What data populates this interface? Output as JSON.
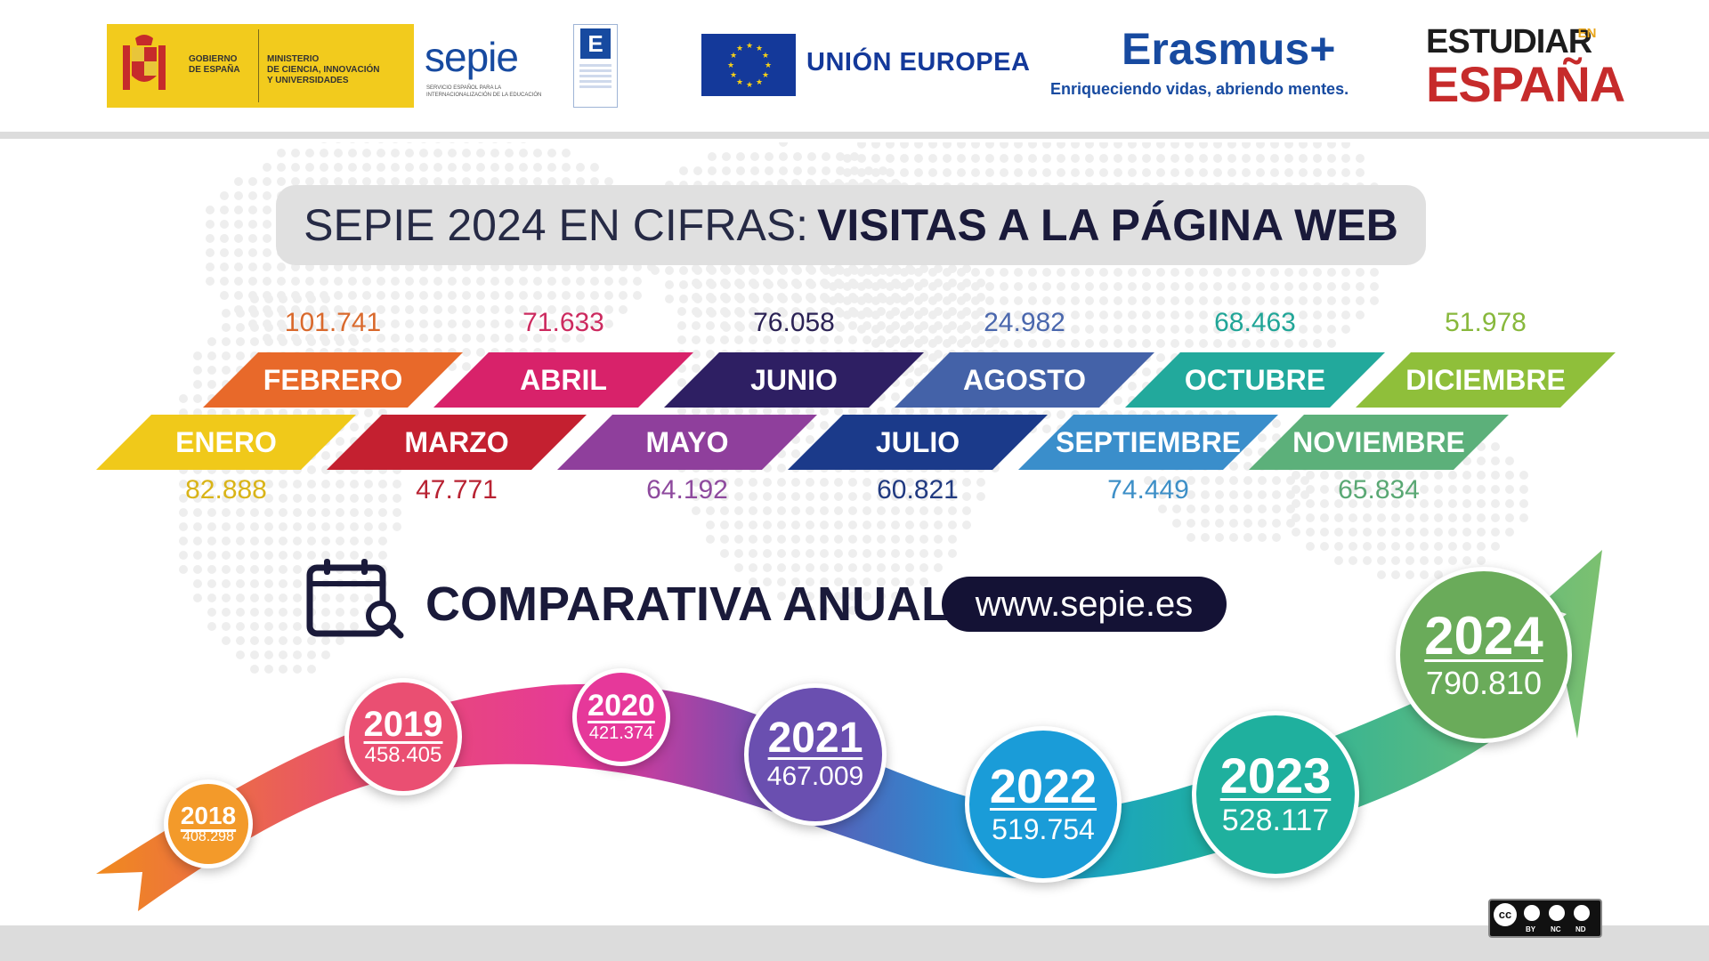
{
  "header": {
    "gov_line1": "GOBIERNO",
    "gov_line2": "DE ESPAÑA",
    "ministry_line1": "MINISTERIO",
    "ministry_line2": "DE CIENCIA, INNOVACIÓN",
    "ministry_line3": "Y UNIVERSIDADES",
    "sepie_logo": "sepie",
    "sepie_sub1": "SERVICIO ESPAÑOL PARA LA",
    "sepie_sub2": "INTERNACIONALIZACIÓN DE LA EDUCACIÓN",
    "eu_label": "UNIÓN EUROPEA",
    "erasmus_title": "Erasmus+",
    "erasmus_slogan": "Enriqueciendo vidas, abriendo mentes.",
    "estudiar_line1": "ESTUDIAR",
    "estudiar_en": "EN",
    "estudiar_line2": "ESPAÑA"
  },
  "title": {
    "light": "SEPIE 2024 EN CIFRAS:",
    "bold": "VISITAS A LA PÁGINA WEB"
  },
  "months": [
    {
      "name": "ENERO",
      "value": "82.888",
      "color": "#f0c91a",
      "value_color": "#d9b418"
    },
    {
      "name": "FEBRERO",
      "value": "101.741",
      "color": "#e8692a",
      "value_color": "#d9692c"
    },
    {
      "name": "MARZO",
      "value": "47.771",
      "color": "#c42030",
      "value_color": "#b82232"
    },
    {
      "name": "ABRIL",
      "value": "71.633",
      "color": "#d8226a",
      "value_color": "#cc2a5f"
    },
    {
      "name": "MAYO",
      "value": "64.192",
      "color": "#8f3f9c",
      "value_color": "#8e4a9e"
    },
    {
      "name": "JUNIO",
      "value": "76.058",
      "color": "#2e1f63",
      "value_color": "#2b2255"
    },
    {
      "name": "JULIO",
      "value": "60.821",
      "color": "#1b3a8a",
      "value_color": "#213a80"
    },
    {
      "name": "AGOSTO",
      "value": "24.982",
      "color": "#4462a8",
      "value_color": "#4a67ad"
    },
    {
      "name": "SEPTIEMBRE",
      "value": "74.449",
      "color": "#3a8ecb",
      "value_color": "#3d8fc7"
    },
    {
      "name": "OCTUBRE",
      "value": "68.463",
      "color": "#22a99c",
      "value_color": "#20a597"
    },
    {
      "name": "NOVIEMBRE",
      "value": "65.834",
      "color": "#5cb07a",
      "value_color": "#5aa874"
    },
    {
      "name": "DICIEMBRE",
      "value": "51.978",
      "color": "#8fbf3a",
      "value_color": "#88b83c"
    }
  ],
  "comparativa": {
    "label": "COMPARATIVA ANUAL",
    "url": "www.sepie.es",
    "years": [
      {
        "year": "2018",
        "value": "408.298",
        "color": "#f39a2a"
      },
      {
        "year": "2019",
        "value": "458.405",
        "color": "#ea4f72"
      },
      {
        "year": "2020",
        "value": "421.374",
        "color": "#e6389a"
      },
      {
        "year": "2021",
        "value": "467.009",
        "color": "#6a4fb0"
      },
      {
        "year": "2022",
        "value": "519.754",
        "color": "#1a9cd8"
      },
      {
        "year": "2023",
        "value": "528.117",
        "color": "#1fb09e"
      },
      {
        "year": "2024",
        "value": "790.810",
        "color": "#6aab5a"
      }
    ]
  },
  "license": {
    "labels": [
      "BY",
      "NC",
      "ND"
    ],
    "cc": "cc"
  }
}
